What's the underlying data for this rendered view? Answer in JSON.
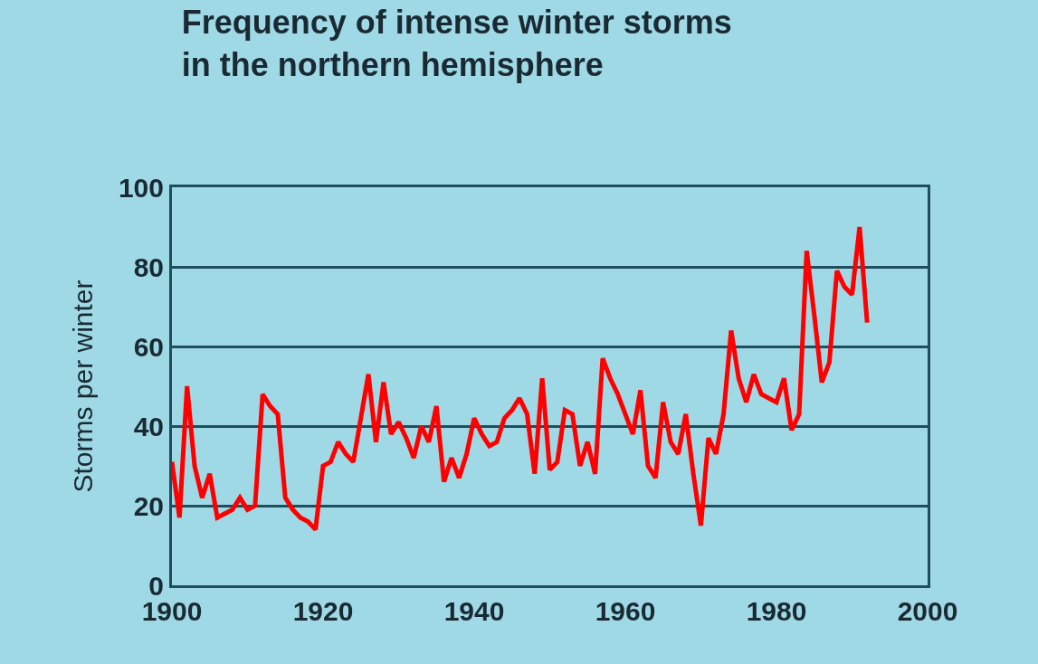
{
  "chart_data": {
    "type": "line",
    "title": "Frequency of intense winter storms\nin the northern hemisphere",
    "ylabel": "Storms per winter",
    "x": [
      1900,
      1901,
      1902,
      1903,
      1904,
      1905,
      1906,
      1907,
      1908,
      1909,
      1910,
      1911,
      1912,
      1913,
      1914,
      1915,
      1916,
      1917,
      1918,
      1919,
      1920,
      1921,
      1922,
      1923,
      1924,
      1925,
      1926,
      1927,
      1928,
      1929,
      1930,
      1931,
      1932,
      1933,
      1934,
      1935,
      1936,
      1937,
      1938,
      1939,
      1940,
      1941,
      1942,
      1943,
      1944,
      1945,
      1946,
      1947,
      1948,
      1949,
      1950,
      1951,
      1952,
      1953,
      1954,
      1955,
      1956,
      1957,
      1958,
      1959,
      1960,
      1961,
      1962,
      1963,
      1964,
      1965,
      1966,
      1967,
      1968,
      1969,
      1970,
      1971,
      1972,
      1973,
      1974,
      1975,
      1976,
      1977,
      1978,
      1979,
      1980,
      1981,
      1982,
      1983,
      1984,
      1985,
      1986,
      1987,
      1988,
      1989,
      1990,
      1991,
      1992
    ],
    "series": [
      {
        "color": "#ff0000",
        "values": [
          31,
          17,
          50,
          30,
          22,
          28,
          17,
          18,
          19,
          22,
          19,
          20,
          48,
          45,
          43,
          22,
          19,
          17,
          16,
          14,
          30,
          31,
          36,
          33,
          31,
          42,
          53,
          36,
          51,
          38,
          41,
          37,
          32,
          40,
          36,
          45,
          26,
          32,
          27,
          33,
          42,
          38,
          35,
          36,
          42,
          44,
          47,
          43,
          28,
          52,
          29,
          31,
          44,
          43,
          30,
          36,
          28,
          57,
          52,
          48,
          43,
          38,
          49,
          30,
          27,
          46,
          36,
          33,
          43,
          28,
          15,
          37,
          33,
          43,
          64,
          52,
          46,
          53,
          48,
          47,
          46,
          52,
          39,
          43,
          84,
          68,
          51,
          56,
          79,
          75,
          73,
          90,
          66
        ]
      }
    ],
    "xlim": [
      1900,
      2000
    ],
    "xticks": [
      1900,
      1920,
      1940,
      1960,
      1980,
      2000
    ],
    "ylim": [
      0,
      100
    ],
    "yticks": [
      0,
      20,
      40,
      60,
      80,
      100
    ],
    "grid": "y",
    "line_style": "solid"
  }
}
